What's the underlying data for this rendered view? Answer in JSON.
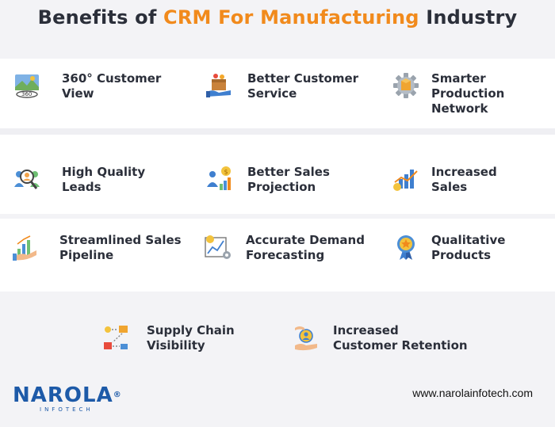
{
  "header": {
    "title_part1": "Benefits of ",
    "title_accent": "CRM For Manufacturing",
    "title_part2": " Industry"
  },
  "benefits": [
    {
      "label": "360° Customer\nView",
      "icon": "360-view-icon"
    },
    {
      "label": "Better Customer\nService",
      "icon": "customer-service-icon"
    },
    {
      "label": "Smarter Production\nNetwork",
      "icon": "production-gear-icon"
    },
    {
      "label": "High Quality\nLeads",
      "icon": "quality-leads-icon"
    },
    {
      "label": "Better Sales\nProjection",
      "icon": "sales-projection-icon"
    },
    {
      "label": "Increased\nSales",
      "icon": "increased-sales-icon"
    },
    {
      "label": "Streamlined Sales\nPipeline",
      "icon": "sales-pipeline-icon"
    },
    {
      "label": "Accurate Demand\nForecasting",
      "icon": "demand-forecast-icon"
    },
    {
      "label": "Qualitative\nProducts",
      "icon": "quality-badge-icon"
    },
    {
      "label": "Supply Chain\nVisibility",
      "icon": "supply-chain-icon"
    },
    {
      "label": "Increased\nCustomer Retention",
      "icon": "customer-retention-icon"
    }
  ],
  "footer": {
    "logo_text": "NAROLA",
    "logo_reg": "®",
    "logo_sub": "INFOTECH",
    "url": "www.narolainfotech.com"
  },
  "colors": {
    "accent": "#f18a1c",
    "brand": "#1d5aa8",
    "text": "#2b2f3a"
  }
}
